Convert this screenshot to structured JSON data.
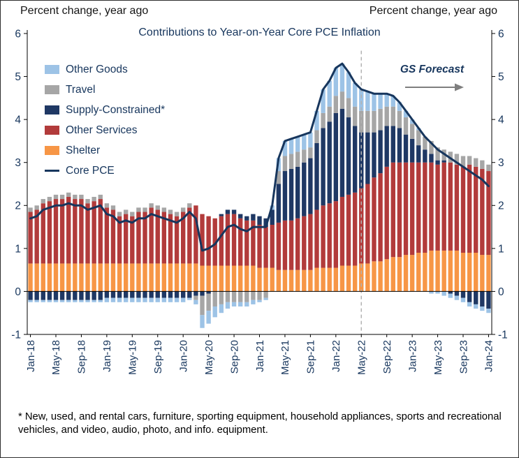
{
  "header": {
    "left_label": "Percent change, year ago",
    "right_label": "Percent change, year ago"
  },
  "title": "Contributions to Year-on-Year Core PCE Inflation",
  "forecast_annotation": {
    "label": "GS Forecast",
    "arrow_direction": "right"
  },
  "footnote": "* New, used, and rental cars, furniture, sporting equipment, household appliances, sports and recreational vehicles, and video, audio, photo, and info. equipment.",
  "colors": {
    "axis_text": "#17365d",
    "axis_line": "#000000",
    "divider": "#b3b3b3",
    "arrow": "#7f7f7f",
    "title_text": "#17365d"
  },
  "legend": {
    "items": [
      {
        "label": "Other Goods",
        "color": "#9dc3e6",
        "swatch": "square"
      },
      {
        "label": "Travel",
        "color": "#a6a6a6",
        "swatch": "square"
      },
      {
        "label": "Supply-Constrained*",
        "color": "#1f3864",
        "swatch": "square"
      },
      {
        "label": "Other Services",
        "color": "#b23b3b",
        "swatch": "square"
      },
      {
        "label": "Shelter",
        "color": "#f79646",
        "swatch": "square"
      },
      {
        "label": "Core PCE",
        "color": "#17365d",
        "swatch": "line"
      }
    ]
  },
  "chart_data": {
    "type": "bar",
    "stacked": true,
    "title": "Contributions to Year-on-Year Core PCE Inflation",
    "xlabel": "",
    "ylabel": "Percent change, year ago",
    "ylim": [
      -1,
      6
    ],
    "yticks": [
      -1,
      0,
      1,
      2,
      3,
      4,
      5,
      6
    ],
    "grid": false,
    "legend_position": "top-left",
    "dual_axis": true,
    "x_tick_every": 4,
    "forecast_divider_x": "May-22",
    "x": [
      "Jan-18",
      "Feb-18",
      "Mar-18",
      "Apr-18",
      "May-18",
      "Jun-18",
      "Jul-18",
      "Aug-18",
      "Sep-18",
      "Oct-18",
      "Nov-18",
      "Dec-18",
      "Jan-19",
      "Feb-19",
      "Mar-19",
      "Apr-19",
      "May-19",
      "Jun-19",
      "Jul-19",
      "Aug-19",
      "Sep-19",
      "Oct-19",
      "Nov-19",
      "Dec-19",
      "Jan-20",
      "Feb-20",
      "Mar-20",
      "Apr-20",
      "May-20",
      "Jun-20",
      "Jul-20",
      "Aug-20",
      "Sep-20",
      "Oct-20",
      "Nov-20",
      "Dec-20",
      "Jan-21",
      "Feb-21",
      "Mar-21",
      "Apr-21",
      "May-21",
      "Jun-21",
      "Jul-21",
      "Aug-21",
      "Sep-21",
      "Oct-21",
      "Nov-21",
      "Dec-21",
      "Jan-22",
      "Feb-22",
      "Mar-22",
      "Apr-22",
      "May-22",
      "Jun-22",
      "Jul-22",
      "Aug-22",
      "Sep-22",
      "Oct-22",
      "Nov-22",
      "Dec-22",
      "Jan-23",
      "Feb-23",
      "Mar-23",
      "Apr-23",
      "May-23",
      "Jun-23",
      "Jul-23",
      "Aug-23",
      "Sep-23",
      "Oct-23",
      "Nov-23",
      "Dec-23",
      "Jan-24"
    ],
    "series": [
      {
        "name": "Shelter",
        "color": "#f79646",
        "values": [
          0.65,
          0.65,
          0.65,
          0.65,
          0.65,
          0.65,
          0.65,
          0.65,
          0.65,
          0.65,
          0.65,
          0.65,
          0.65,
          0.65,
          0.65,
          0.65,
          0.65,
          0.65,
          0.65,
          0.65,
          0.65,
          0.65,
          0.65,
          0.65,
          0.65,
          0.65,
          0.65,
          0.6,
          0.6,
          0.6,
          0.6,
          0.6,
          0.6,
          0.6,
          0.6,
          0.6,
          0.55,
          0.55,
          0.55,
          0.5,
          0.5,
          0.5,
          0.5,
          0.5,
          0.5,
          0.55,
          0.55,
          0.55,
          0.55,
          0.6,
          0.6,
          0.6,
          0.65,
          0.65,
          0.7,
          0.7,
          0.75,
          0.8,
          0.8,
          0.85,
          0.85,
          0.9,
          0.9,
          0.95,
          0.95,
          0.95,
          0.95,
          0.95,
          0.9,
          0.9,
          0.9,
          0.85,
          0.85
        ]
      },
      {
        "name": "Other Services",
        "color": "#b23b3b",
        "values": [
          1.2,
          1.25,
          1.4,
          1.45,
          1.5,
          1.5,
          1.55,
          1.5,
          1.5,
          1.4,
          1.45,
          1.5,
          1.3,
          1.25,
          1.1,
          1.15,
          1.1,
          1.2,
          1.2,
          1.3,
          1.25,
          1.2,
          1.15,
          1.1,
          1.2,
          1.3,
          1.35,
          1.2,
          1.15,
          1.1,
          1.15,
          1.2,
          1.2,
          1.1,
          1.05,
          1.05,
          1.0,
          0.95,
          1.0,
          1.1,
          1.15,
          1.15,
          1.2,
          1.25,
          1.3,
          1.35,
          1.45,
          1.5,
          1.55,
          1.6,
          1.65,
          1.7,
          1.75,
          1.85,
          1.95,
          2.05,
          2.15,
          2.2,
          2.2,
          2.15,
          2.15,
          2.1,
          2.1,
          2.05,
          2.0,
          2.05,
          2.05,
          2.0,
          2.0,
          2.05,
          2.0,
          2.0,
          1.95
        ]
      },
      {
        "name": "Supply-Constrained*",
        "color": "#1f3864",
        "values": [
          -0.2,
          -0.2,
          -0.2,
          -0.2,
          -0.2,
          -0.2,
          -0.2,
          -0.2,
          -0.2,
          -0.2,
          -0.2,
          -0.2,
          -0.15,
          -0.15,
          -0.15,
          -0.15,
          -0.15,
          -0.15,
          -0.15,
          -0.15,
          -0.15,
          -0.15,
          -0.15,
          -0.15,
          -0.15,
          -0.15,
          -0.1,
          -0.1,
          -0.05,
          0,
          0.05,
          0.1,
          0.1,
          0.1,
          0.1,
          0.15,
          0.2,
          0.2,
          0.35,
          0.9,
          1.15,
          1.2,
          1.2,
          1.25,
          1.3,
          1.55,
          1.8,
          1.9,
          2.05,
          2.05,
          1.8,
          1.55,
          1.3,
          1.2,
          1.05,
          1.0,
          0.95,
          0.85,
          0.8,
          0.65,
          0.55,
          0.4,
          0.3,
          0.2,
          0.1,
          0.05,
          -0.05,
          -0.1,
          -0.15,
          -0.25,
          -0.3,
          -0.35,
          -0.4
        ]
      },
      {
        "name": "Travel",
        "color": "#a6a6a6",
        "values": [
          0.1,
          0.1,
          0.1,
          0.1,
          0.1,
          0.1,
          0.1,
          0.1,
          0.1,
          0.1,
          0.1,
          0.1,
          0.1,
          0.1,
          0.1,
          0.1,
          0.1,
          0.1,
          0.1,
          0.1,
          0.1,
          0.1,
          0.1,
          0.1,
          0.1,
          0.1,
          -0.1,
          -0.45,
          -0.4,
          -0.35,
          -0.3,
          -0.25,
          -0.25,
          -0.25,
          -0.25,
          -0.2,
          -0.2,
          -0.15,
          0,
          0.3,
          0.35,
          0.35,
          0.35,
          0.3,
          0.25,
          0.3,
          0.35,
          0.35,
          0.4,
          0.4,
          0.45,
          0.45,
          0.5,
          0.5,
          0.5,
          0.5,
          0.45,
          0.45,
          0.4,
          0.4,
          0.35,
          0.35,
          0.3,
          0.3,
          0.3,
          0.25,
          0.25,
          0.25,
          0.25,
          0.2,
          0.2,
          0.2,
          0.15
        ]
      },
      {
        "name": "Other Goods",
        "color": "#9dc3e6",
        "values": [
          -0.05,
          -0.05,
          -0.05,
          -0.05,
          -0.05,
          -0.05,
          -0.05,
          -0.05,
          -0.05,
          -0.05,
          -0.05,
          -0.05,
          -0.1,
          -0.1,
          -0.1,
          -0.1,
          -0.1,
          -0.1,
          -0.1,
          -0.1,
          -0.1,
          -0.1,
          -0.1,
          -0.1,
          -0.1,
          -0.05,
          -0.1,
          -0.3,
          -0.3,
          -0.25,
          -0.2,
          -0.15,
          -0.1,
          -0.1,
          -0.1,
          -0.1,
          -0.05,
          -0.05,
          0.1,
          0.3,
          0.35,
          0.35,
          0.35,
          0.35,
          0.35,
          0.45,
          0.55,
          0.6,
          0.65,
          0.65,
          0.6,
          0.55,
          0.5,
          0.45,
          0.4,
          0.35,
          0.3,
          0.25,
          0.2,
          0.15,
          0.1,
          0.05,
          0,
          -0.05,
          -0.05,
          -0.1,
          -0.1,
          -0.1,
          -0.1,
          -0.1,
          -0.1,
          -0.1,
          -0.1
        ]
      }
    ],
    "line": {
      "name": "Core PCE",
      "color": "#17365d",
      "values": [
        1.7,
        1.75,
        1.9,
        1.95,
        2.0,
        2.0,
        2.05,
        2.0,
        2.0,
        1.9,
        1.95,
        2.0,
        1.8,
        1.75,
        1.6,
        1.65,
        1.6,
        1.7,
        1.7,
        1.8,
        1.75,
        1.7,
        1.65,
        1.6,
        1.7,
        1.85,
        1.7,
        0.95,
        1.0,
        1.1,
        1.3,
        1.5,
        1.55,
        1.45,
        1.4,
        1.5,
        1.5,
        1.5,
        2.0,
        3.1,
        3.5,
        3.55,
        3.6,
        3.65,
        3.7,
        4.2,
        4.7,
        4.9,
        5.2,
        5.3,
        5.1,
        4.85,
        4.7,
        4.65,
        4.6,
        4.6,
        4.6,
        4.55,
        4.4,
        4.2,
        4.0,
        3.8,
        3.6,
        3.45,
        3.3,
        3.2,
        3.1,
        3.0,
        2.9,
        2.8,
        2.7,
        2.6,
        2.45
      ]
    }
  }
}
